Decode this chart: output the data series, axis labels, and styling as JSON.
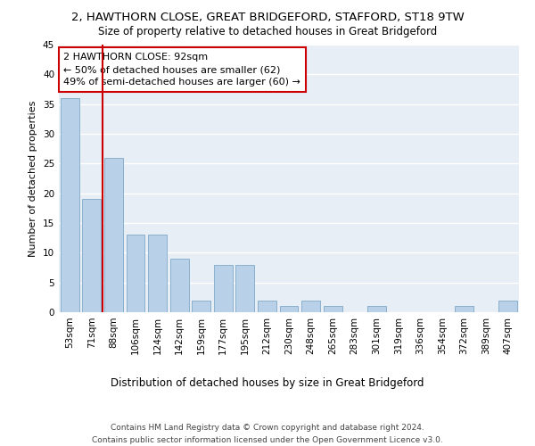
{
  "title1": "2, HAWTHORN CLOSE, GREAT BRIDGEFORD, STAFFORD, ST18 9TW",
  "title2": "Size of property relative to detached houses in Great Bridgeford",
  "xlabel": "Distribution of detached houses by size in Great Bridgeford",
  "ylabel": "Number of detached properties",
  "categories": [
    "53sqm",
    "71sqm",
    "88sqm",
    "106sqm",
    "124sqm",
    "142sqm",
    "159sqm",
    "177sqm",
    "195sqm",
    "212sqm",
    "230sqm",
    "248sqm",
    "265sqm",
    "283sqm",
    "301sqm",
    "319sqm",
    "336sqm",
    "354sqm",
    "372sqm",
    "389sqm",
    "407sqm"
  ],
  "values": [
    36,
    19,
    26,
    13,
    13,
    9,
    2,
    8,
    8,
    2,
    1,
    2,
    1,
    0,
    1,
    0,
    0,
    0,
    1,
    0,
    2
  ],
  "bar_color": "#b8d0e8",
  "bar_edge_color": "#8ab0cc",
  "background_color": "#e8eef5",
  "grid_color": "#ffffff",
  "annotation_text": "2 HAWTHORN CLOSE: 92sqm\n← 50% of detached houses are smaller (62)\n49% of semi-detached houses are larger (60) →",
  "annotation_box_color": "#ffffff",
  "annotation_box_edge_color": "#cc0000",
  "vline_color": "#cc0000",
  "vline_xindex": 2,
  "ylim": [
    0,
    45
  ],
  "yticks": [
    0,
    5,
    10,
    15,
    20,
    25,
    30,
    35,
    40,
    45
  ],
  "footer": "Contains HM Land Registry data © Crown copyright and database right 2024.\nContains public sector information licensed under the Open Government Licence v3.0.",
  "title1_fontsize": 9.5,
  "title2_fontsize": 8.5,
  "xlabel_fontsize": 8.5,
  "ylabel_fontsize": 8,
  "tick_fontsize": 7.5,
  "annotation_fontsize": 8,
  "footer_fontsize": 6.5
}
